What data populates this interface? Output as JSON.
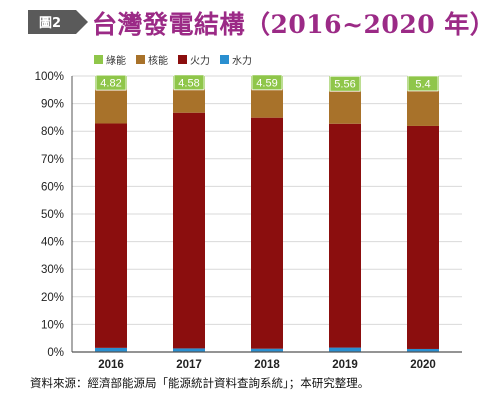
{
  "badge": {
    "label": "圖2"
  },
  "title": "台灣發電結構（2016~2020 年）",
  "source": "資料來源：經濟部能源局「能源統計資料查詢系統」；本研究整理。",
  "colors": {
    "badge": "#5a5a5a",
    "title": "#9b2a86",
    "green": "#8fc64a",
    "nuclear": "#a8722a",
    "thermal": "#8b0e0e",
    "hydro": "#2a8fd0",
    "grid": "#d9d9d9",
    "axis": "#555555",
    "label_box": "#8fc64a",
    "label_text": "#ffffff"
  },
  "chart_data": {
    "type": "bar",
    "stacked": true,
    "categories": [
      "2016",
      "2017",
      "2018",
      "2019",
      "2020"
    ],
    "series": [
      {
        "name": "水力",
        "color": "#2a8fd0",
        "values": [
          1.5,
          1.3,
          1.2,
          1.6,
          1.1
        ]
      },
      {
        "name": "火力",
        "color": "#8b0e0e",
        "values": [
          81.3,
          85.4,
          83.7,
          81.1,
          80.8
        ]
      },
      {
        "name": "核能",
        "color": "#a8722a",
        "values": [
          12.4,
          8.7,
          10.5,
          11.7,
          12.7
        ]
      },
      {
        "name": "綠能",
        "color": "#8fc64a",
        "values": [
          4.8,
          4.6,
          4.6,
          5.6,
          5.4
        ]
      }
    ],
    "data_labels": [
      "4.82",
      "4.58",
      "4.59",
      "5.56",
      "5.4"
    ],
    "y_ticks": [
      "0%",
      "10%",
      "20%",
      "30%",
      "40%",
      "50%",
      "60%",
      "70%",
      "80%",
      "90%",
      "100%"
    ],
    "ylim": [
      0,
      100
    ],
    "grid": true,
    "legend_position": "top-left",
    "legend_order": [
      "綠能",
      "核能",
      "火力",
      "水力"
    ]
  }
}
